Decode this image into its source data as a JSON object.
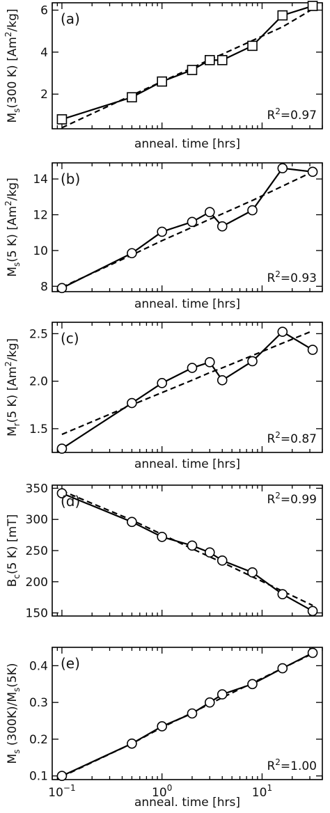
{
  "chart_data": [
    {
      "type": "line",
      "panel_label": "(a)",
      "ylabel_main": "M",
      "ylabel_sub": "s",
      "ylabel_rest": "(300 K) [Am",
      "ylabel_sup": "2",
      "ylabel_end": "/kg]",
      "xlabel": "anneal. time [hrs]",
      "r2_label": "R",
      "r2_sup": "2",
      "r2_value": "=0.97",
      "marker": "square",
      "x_scale": "log",
      "xlim": [
        0.08,
        40
      ],
      "ylim": [
        0.35,
        6.35
      ],
      "yticks": [
        2,
        4,
        6
      ],
      "ytick_labels": [
        "2",
        "4",
        "6"
      ],
      "x": [
        0.1,
        0.5,
        1,
        2,
        3,
        4,
        8,
        16,
        32
      ],
      "series": [
        {
          "values": [
            0.8,
            1.85,
            2.6,
            3.15,
            3.62,
            3.62,
            4.3,
            5.75,
            6.2
          ],
          "style": "solid"
        },
        {
          "values": [
            0.4,
            1.95,
            2.6,
            3.25,
            3.65,
            3.9,
            4.55,
            5.2,
            6.05
          ],
          "style": "dashed"
        }
      ]
    },
    {
      "type": "line",
      "panel_label": "(b)",
      "ylabel_main": "M",
      "ylabel_sub": "s",
      "ylabel_rest": "(5 K) [Am",
      "ylabel_sup": "2",
      "ylabel_end": "/kg]",
      "xlabel": "anneal. time [hrs]",
      "r2_label": "R",
      "r2_sup": "2",
      "r2_value": "=0.93",
      "marker": "circle",
      "x_scale": "log",
      "xlim": [
        0.08,
        40
      ],
      "ylim": [
        7.7,
        14.9
      ],
      "yticks": [
        8,
        10,
        12,
        14
      ],
      "ytick_labels": [
        "8",
        "10",
        "12",
        "14"
      ],
      "x": [
        0.1,
        0.5,
        1,
        2,
        3,
        4,
        8,
        16,
        32
      ],
      "series": [
        {
          "values": [
            7.9,
            9.85,
            11.05,
            11.6,
            12.15,
            11.35,
            12.25,
            14.6,
            14.4
          ],
          "style": "solid"
        },
        {
          "values": [
            7.95,
            9.75,
            10.55,
            11.3,
            11.75,
            12.05,
            12.8,
            13.6,
            14.4
          ],
          "style": "dashed"
        }
      ]
    },
    {
      "type": "line",
      "panel_label": "(c)",
      "ylabel_main": "M",
      "ylabel_sub": "r",
      "ylabel_rest": "(5 K) [Am",
      "ylabel_sup": "2",
      "ylabel_end": "/kg]",
      "xlabel": "anneal. time [hrs]",
      "r2_label": "R",
      "r2_sup": "2",
      "r2_value": "=0.87",
      "marker": "circle",
      "x_scale": "log",
      "xlim": [
        0.08,
        40
      ],
      "ylim": [
        1.25,
        2.62
      ],
      "yticks": [
        1.5,
        2.0,
        2.5
      ],
      "ytick_labels": [
        "1.5",
        "2.0",
        "2.5"
      ],
      "x": [
        0.1,
        0.5,
        1,
        2,
        3,
        4,
        8,
        16,
        32
      ],
      "series": [
        {
          "values": [
            1.29,
            1.77,
            1.98,
            2.14,
            2.2,
            2.01,
            2.21,
            2.52,
            2.33
          ],
          "style": "solid"
        },
        {
          "values": [
            1.44,
            1.75,
            1.88,
            2.01,
            2.09,
            2.14,
            2.27,
            2.4,
            2.53
          ],
          "style": "dashed"
        }
      ]
    },
    {
      "type": "line",
      "panel_label": "(d)",
      "ylabel_main": "B",
      "ylabel_sub": "c",
      "ylabel_rest": "(5 K) [mT]",
      "ylabel_sup": "",
      "ylabel_end": "",
      "xlabel": "",
      "r2_label": "R",
      "r2_sup": "2",
      "r2_value": "=0.99",
      "marker": "circle",
      "x_scale": "log",
      "xlim": [
        0.08,
        40
      ],
      "ylim": [
        145,
        355
      ],
      "yticks": [
        150,
        200,
        250,
        300,
        350
      ],
      "ytick_labels": [
        "150",
        "200",
        "250",
        "300",
        "350"
      ],
      "x": [
        0.1,
        0.5,
        1,
        2,
        3,
        4,
        8,
        16,
        32
      ],
      "series": [
        {
          "values": [
            342,
            296,
            272,
            258,
            247,
            234,
            215,
            180,
            153
          ],
          "style": "solid"
        },
        {
          "values": [
            346,
            299,
            276,
            253,
            240,
            231,
            208,
            185,
            162
          ],
          "style": "dashed"
        }
      ]
    },
    {
      "type": "line",
      "panel_label": "(e)",
      "ylabel_main": "M",
      "ylabel_sub": "s",
      "ylabel_rest": " (300K)/M",
      "ylabel_sup": "",
      "ylabel_sub2": "s",
      "ylabel_end": "(5K)",
      "xlabel": "anneal. time [hrs]",
      "r2_label": "R",
      "r2_sup": "2",
      "r2_value": "=1.00",
      "marker": "circle",
      "x_scale": "log",
      "xlim": [
        0.08,
        40
      ],
      "ylim": [
        0.09,
        0.45
      ],
      "yticks": [
        0.1,
        0.2,
        0.3,
        0.4
      ],
      "ytick_labels": [
        "0.1",
        "0.2",
        "0.3",
        "0.4"
      ],
      "xticks": [
        0.1,
        1,
        10
      ],
      "xtick_base": "10",
      "xtick_exps": [
        "−1",
        "0",
        "1"
      ],
      "x": [
        0.1,
        0.5,
        1,
        2,
        3,
        4,
        8,
        16,
        32
      ],
      "series": [
        {
          "values": [
            0.1,
            0.188,
            0.235,
            0.27,
            0.3,
            0.322,
            0.35,
            0.393,
            0.435
          ],
          "style": "solid"
        },
        {
          "values": [
            0.098,
            0.188,
            0.232,
            0.272,
            0.296,
            0.313,
            0.353,
            0.393,
            0.433
          ],
          "style": "dashed"
        }
      ]
    }
  ]
}
